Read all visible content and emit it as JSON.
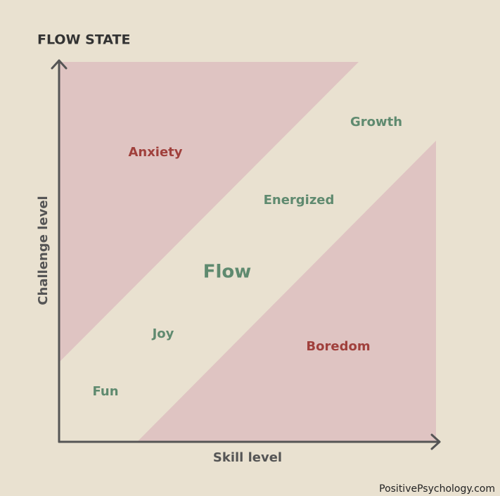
{
  "header": {
    "title": "FLOW STATE"
  },
  "axes": {
    "y_label": "Challenge level",
    "x_label": "Skill level"
  },
  "zones": [
    {
      "label": "Anxiety"
    },
    {
      "label": "Growth"
    },
    {
      "label": "Energized"
    },
    {
      "label": "Flow"
    },
    {
      "label": "Joy"
    },
    {
      "label": "Boredom"
    },
    {
      "label": "Fun"
    }
  ],
  "footer": {
    "source": "PositivePsychology.com"
  }
}
